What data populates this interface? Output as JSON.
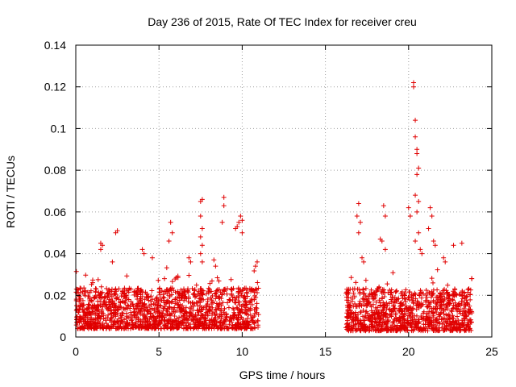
{
  "chart_data": {
    "type": "scatter",
    "title": "Day 236 of 2015, Rate Of TEC Index for receiver creu",
    "xlabel": "GPS time / hours",
    "ylabel": "ROTI / TECUs",
    "xlim": [
      0,
      25
    ],
    "ylim": [
      0,
      0.14
    ],
    "x_ticks": [
      0,
      5,
      10,
      15,
      20,
      25
    ],
    "x_tick_labels": [
      "0",
      "5",
      "10",
      "15",
      "20",
      "25"
    ],
    "y_ticks": [
      0,
      0.02,
      0.04,
      0.06,
      0.08,
      0.1,
      0.12,
      0.14
    ],
    "y_tick_labels": [
      "0",
      "0.02",
      "0.04",
      "0.06",
      "0.08",
      "0.1",
      "0.12",
      "0.14"
    ],
    "grid": true,
    "marker": "+",
    "marker_color": "#e00000",
    "data_segments": [
      {
        "x_start": 0.0,
        "x_end": 11.0,
        "typical_min": 0.004,
        "typical_max": 0.03
      },
      {
        "x_start": 16.2,
        "x_end": 23.8,
        "typical_min": 0.003,
        "typical_max": 0.03
      }
    ],
    "notable_points": [
      {
        "x": 1.5,
        "y": 0.045
      },
      {
        "x": 1.6,
        "y": 0.044
      },
      {
        "x": 1.5,
        "y": 0.042
      },
      {
        "x": 2.4,
        "y": 0.05
      },
      {
        "x": 2.5,
        "y": 0.051
      },
      {
        "x": 2.2,
        "y": 0.036
      },
      {
        "x": 4.0,
        "y": 0.042
      },
      {
        "x": 4.1,
        "y": 0.04
      },
      {
        "x": 4.6,
        "y": 0.038
      },
      {
        "x": 5.7,
        "y": 0.055
      },
      {
        "x": 5.8,
        "y": 0.05
      },
      {
        "x": 5.6,
        "y": 0.046
      },
      {
        "x": 6.8,
        "y": 0.038
      },
      {
        "x": 6.9,
        "y": 0.036
      },
      {
        "x": 7.5,
        "y": 0.065
      },
      {
        "x": 7.6,
        "y": 0.066
      },
      {
        "x": 7.5,
        "y": 0.058
      },
      {
        "x": 7.6,
        "y": 0.052
      },
      {
        "x": 7.5,
        "y": 0.048
      },
      {
        "x": 7.6,
        "y": 0.044
      },
      {
        "x": 7.5,
        "y": 0.04
      },
      {
        "x": 7.6,
        "y": 0.036
      },
      {
        "x": 8.3,
        "y": 0.037
      },
      {
        "x": 8.4,
        "y": 0.034
      },
      {
        "x": 8.9,
        "y": 0.067
      },
      {
        "x": 8.9,
        "y": 0.063
      },
      {
        "x": 8.8,
        "y": 0.055
      },
      {
        "x": 9.6,
        "y": 0.052
      },
      {
        "x": 9.7,
        "y": 0.053
      },
      {
        "x": 9.8,
        "y": 0.055
      },
      {
        "x": 9.9,
        "y": 0.058
      },
      {
        "x": 10.0,
        "y": 0.056
      },
      {
        "x": 10.0,
        "y": 0.05
      },
      {
        "x": 10.9,
        "y": 0.036
      },
      {
        "x": 10.8,
        "y": 0.034
      },
      {
        "x": 16.4,
        "y": 0.021
      },
      {
        "x": 16.9,
        "y": 0.058
      },
      {
        "x": 17.0,
        "y": 0.064
      },
      {
        "x": 17.1,
        "y": 0.055
      },
      {
        "x": 17.0,
        "y": 0.05
      },
      {
        "x": 17.2,
        "y": 0.038
      },
      {
        "x": 17.3,
        "y": 0.036
      },
      {
        "x": 18.3,
        "y": 0.047
      },
      {
        "x": 18.4,
        "y": 0.046
      },
      {
        "x": 18.5,
        "y": 0.063
      },
      {
        "x": 18.6,
        "y": 0.058
      },
      {
        "x": 18.6,
        "y": 0.042
      },
      {
        "x": 20.0,
        "y": 0.062
      },
      {
        "x": 20.1,
        "y": 0.058
      },
      {
        "x": 20.3,
        "y": 0.122
      },
      {
        "x": 20.3,
        "y": 0.12
      },
      {
        "x": 20.4,
        "y": 0.104
      },
      {
        "x": 20.4,
        "y": 0.096
      },
      {
        "x": 20.5,
        "y": 0.09
      },
      {
        "x": 20.5,
        "y": 0.088
      },
      {
        "x": 20.6,
        "y": 0.081
      },
      {
        "x": 20.5,
        "y": 0.078
      },
      {
        "x": 20.4,
        "y": 0.068
      },
      {
        "x": 20.6,
        "y": 0.065
      },
      {
        "x": 20.5,
        "y": 0.06
      },
      {
        "x": 20.6,
        "y": 0.05
      },
      {
        "x": 20.4,
        "y": 0.046
      },
      {
        "x": 20.7,
        "y": 0.042
      },
      {
        "x": 20.8,
        "y": 0.04
      },
      {
        "x": 21.3,
        "y": 0.062
      },
      {
        "x": 21.4,
        "y": 0.058
      },
      {
        "x": 21.2,
        "y": 0.052
      },
      {
        "x": 21.5,
        "y": 0.046
      },
      {
        "x": 21.6,
        "y": 0.044
      },
      {
        "x": 22.1,
        "y": 0.038
      },
      {
        "x": 22.2,
        "y": 0.036
      },
      {
        "x": 22.7,
        "y": 0.044
      },
      {
        "x": 23.2,
        "y": 0.045
      },
      {
        "x": 23.8,
        "y": 0.028
      }
    ]
  }
}
